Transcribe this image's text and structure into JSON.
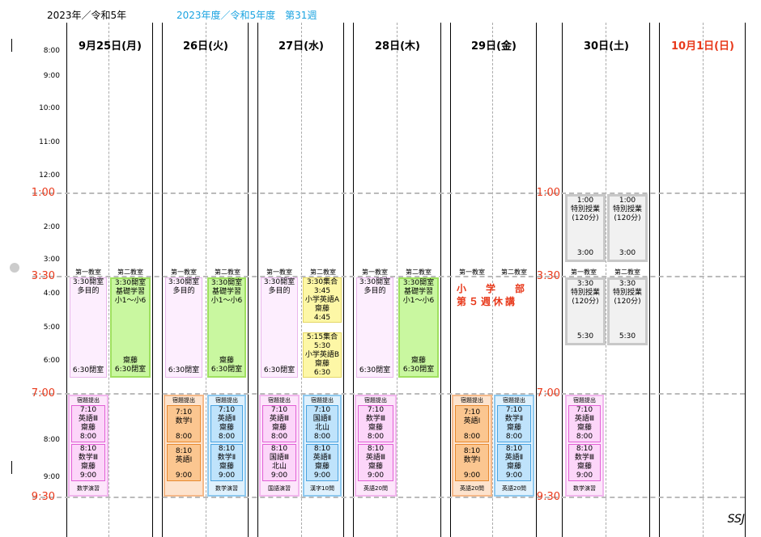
{
  "header": {
    "year": "2023年／令和5年",
    "week": "2023年度／令和5年度　第31週"
  },
  "days": [
    "9月25日(月)",
    "26日(火)",
    "27日(水)",
    "28日(木)",
    "29日(金)",
    "30日(土)",
    "10月1日(日)"
  ],
  "hours": [
    "8:00",
    "9:00",
    "10:00",
    "11:00",
    "12:00",
    "2:00",
    "3:00",
    "4:00",
    "5:00",
    "6:00",
    "8:00",
    "9:00"
  ],
  "big_hours": [
    "1:00",
    "3:30",
    "7:00",
    "9:30"
  ],
  "rooms": {
    "r1": "第一教室",
    "r2": "第二教室"
  },
  "weekday_blocks": {
    "open_multi": [
      "3:30開室",
      "多目的",
      "6:30閉室"
    ],
    "kiso": [
      "3:30開室",
      "基礎学習",
      "小1～小6",
      "齋藤",
      "6:30閉室"
    ]
  },
  "wed_r2": {
    "a": [
      "3:30集合",
      "3:45",
      "小学英語A",
      "齋藤",
      "4:45"
    ],
    "b": [
      "5:15集合",
      "5:30",
      "小学英語B",
      "齋藤",
      "6:30"
    ]
  },
  "friday_note": [
    "小　学　部",
    "第５週休講"
  ],
  "saturday": {
    "special": [
      "1:00",
      "特別授業",
      "(120分)",
      "3:00"
    ],
    "special2": [
      "3:30",
      "特別授業",
      "(120分)",
      "5:30"
    ]
  },
  "evening": {
    "homework": "宿題提出",
    "mon": {
      "s1": [
        "7:10",
        "英語Ⅲ",
        "齋藤",
        "8:00"
      ],
      "s2": [
        "8:10",
        "数学Ⅲ",
        "齋藤",
        "9:00"
      ],
      "foot": "数学演習"
    },
    "tue_r1": {
      "s1": [
        "7:10",
        "数学Ⅰ",
        "8:00"
      ],
      "s2": [
        "8:10",
        "英語Ⅰ",
        "9:00"
      ]
    },
    "tue_r2": {
      "s1": [
        "7:10",
        "英語Ⅱ",
        "齋藤",
        "8:00"
      ],
      "s2": [
        "8:10",
        "数学Ⅱ",
        "齋藤",
        "9:00"
      ],
      "foot": "数学演習"
    },
    "wed_r1": {
      "s1": [
        "7:10",
        "英語Ⅲ",
        "齋藤",
        "8:00"
      ],
      "s2": [
        "8:10",
        "国語Ⅲ",
        "北山",
        "9:00"
      ],
      "foot": "国語演習"
    },
    "wed_r2": {
      "s1": [
        "7:10",
        "国語Ⅱ",
        "北山",
        "8:00"
      ],
      "s2": [
        "8:10",
        "英語Ⅱ",
        "齋藤",
        "9:00"
      ],
      "foot": "漢字10問"
    },
    "thu": {
      "s1": [
        "7:10",
        "数学Ⅲ",
        "齋藤",
        "8:00"
      ],
      "s2": [
        "8:10",
        "英語Ⅲ",
        "齋藤",
        "9:00"
      ],
      "foot": "英語20問"
    },
    "fri_r1": {
      "s1": [
        "7:10",
        "英語Ⅰ",
        "8:00"
      ],
      "s2": [
        "8:10",
        "数学Ⅰ",
        "9:00"
      ],
      "foot": "英語20問"
    },
    "fri_r2": {
      "s1": [
        "7:10",
        "数学Ⅱ",
        "齋藤",
        "8:00"
      ],
      "s2": [
        "8:10",
        "英語Ⅱ",
        "齋藤",
        "9:00"
      ],
      "foot": "英語20問"
    },
    "sat": {
      "s1": [
        "7:10",
        "英語Ⅲ",
        "齋藤",
        "8:00"
      ],
      "s2": [
        "8:10",
        "数学Ⅲ",
        "齋藤",
        "9:00"
      ],
      "foot": "数学演習"
    }
  },
  "signature": "SSJ"
}
